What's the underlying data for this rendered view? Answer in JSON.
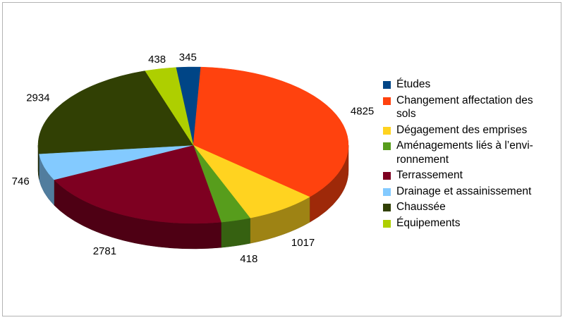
{
  "chart_data": {
    "type": "pie",
    "title": "",
    "categories": [
      "Études",
      "Changement affectation des sols",
      "Dégagement des emprises",
      "Aménagements liés à l’envi-ronnement",
      "Terrassement",
      "Drainage et assainissement",
      "Chaussée",
      "Équipements"
    ],
    "values": [
      345,
      4825,
      1017,
      418,
      2781,
      746,
      2934,
      438
    ],
    "colors": [
      "#004586",
      "#ff420e",
      "#ffd320",
      "#579d1c",
      "#7e0021",
      "#83caff",
      "#314004",
      "#aecf00"
    ],
    "legend_position": "right",
    "three_d": true
  },
  "legend": {
    "items": [
      {
        "label": "Études",
        "color": "#004586"
      },
      {
        "label": "Changement affectation des sols",
        "color": "#ff420e"
      },
      {
        "label": "Dégagement des emprises",
        "color": "#ffd320"
      },
      {
        "label": "Aménagements liés à l’envi-ronnement",
        "color": "#579d1c"
      },
      {
        "label": "Terrassement",
        "color": "#7e0021"
      },
      {
        "label": "Drainage et assainissement",
        "color": "#83caff"
      },
      {
        "label": "Chaussée",
        "color": "#314004"
      },
      {
        "label": "Équipements",
        "color": "#aecf00"
      }
    ]
  }
}
